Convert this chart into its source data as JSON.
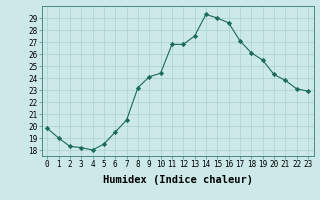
{
  "xlabel": "Humidex (Indice chaleur)",
  "ylabel": "",
  "x_values": [
    0,
    1,
    2,
    3,
    4,
    5,
    6,
    7,
    8,
    9,
    10,
    11,
    12,
    13,
    14,
    15,
    16,
    17,
    18,
    19,
    20,
    21,
    22,
    23
  ],
  "y_values": [
    19.8,
    19.0,
    18.3,
    18.2,
    18.0,
    18.5,
    19.5,
    20.5,
    23.2,
    24.1,
    24.4,
    26.8,
    26.8,
    27.5,
    29.3,
    29.0,
    28.6,
    27.1,
    26.1,
    25.5,
    24.3,
    23.8,
    23.1,
    22.9
  ],
  "line_color": "#1a6b5a",
  "marker": "D",
  "marker_size": 2.2,
  "bg_color": "#cce8e8",
  "grid_color": "#b0d4d4",
  "ylim": [
    17.5,
    30.0
  ],
  "xlim": [
    -0.5,
    23.5
  ],
  "yticks": [
    18,
    19,
    20,
    21,
    22,
    23,
    24,
    25,
    26,
    27,
    28,
    29
  ],
  "xticks": [
    0,
    1,
    2,
    3,
    4,
    5,
    6,
    7,
    8,
    9,
    10,
    11,
    12,
    13,
    14,
    15,
    16,
    17,
    18,
    19,
    20,
    21,
    22,
    23
  ],
  "tick_label_fontsize": 5.5,
  "xlabel_fontsize": 7.5,
  "line_width": 0.8
}
